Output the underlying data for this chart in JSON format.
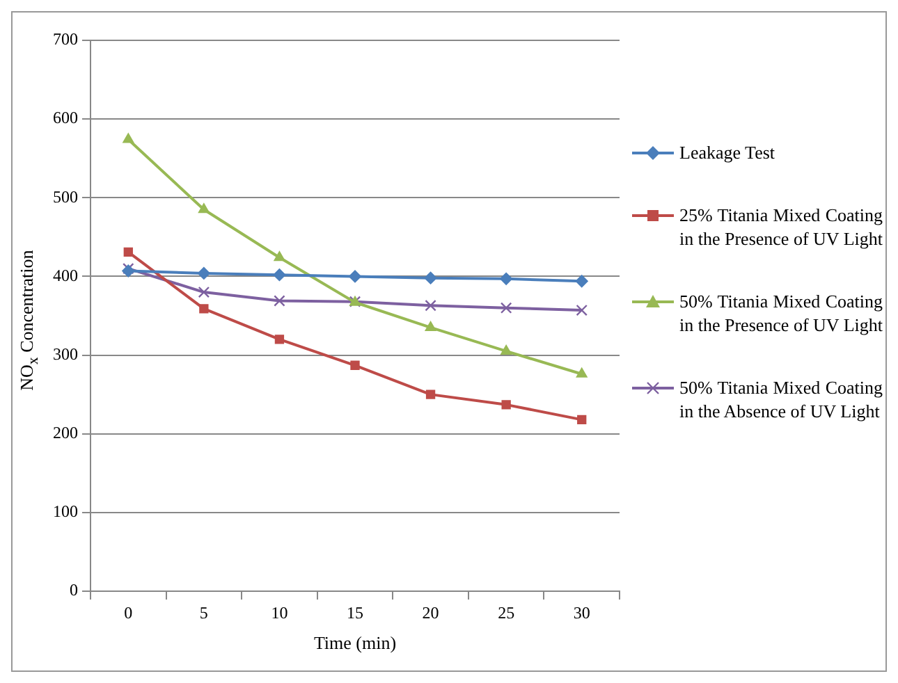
{
  "chart_data": {
    "type": "line",
    "xlabel": "Time (min)",
    "ylabel": "NO$_{x}$ Concentration",
    "categories": [
      "0",
      "5",
      "10",
      "15",
      "20",
      "25",
      "30"
    ],
    "ylim": [
      0,
      700
    ],
    "yticks": [
      0,
      100,
      200,
      300,
      400,
      500,
      600,
      700
    ],
    "grid": "y",
    "legend": "right",
    "line_style": "solid",
    "series": [
      {
        "name": "Leakage Test",
        "color": "#4a7ebb",
        "marker": "diamond",
        "values": [
          407,
          404,
          402,
          400,
          398,
          397,
          394
        ]
      },
      {
        "name": "25% Titania Mixed Coating in the Presence of UV Light",
        "color": "#be4b48",
        "marker": "square",
        "values": [
          431,
          359,
          320,
          287,
          250,
          237,
          218
        ]
      },
      {
        "name": "50% Titania Mixed Coating in the Presence of UV Light",
        "color": "#98b954",
        "marker": "triangle",
        "values": [
          574,
          485,
          424,
          367,
          335,
          305,
          276
        ]
      },
      {
        "name": "50% Titania Mixed Coating in the Absence of UV Light",
        "color": "#7d60a0",
        "marker": "cross",
        "values": [
          410,
          380,
          369,
          368,
          363,
          360,
          357
        ]
      }
    ]
  }
}
